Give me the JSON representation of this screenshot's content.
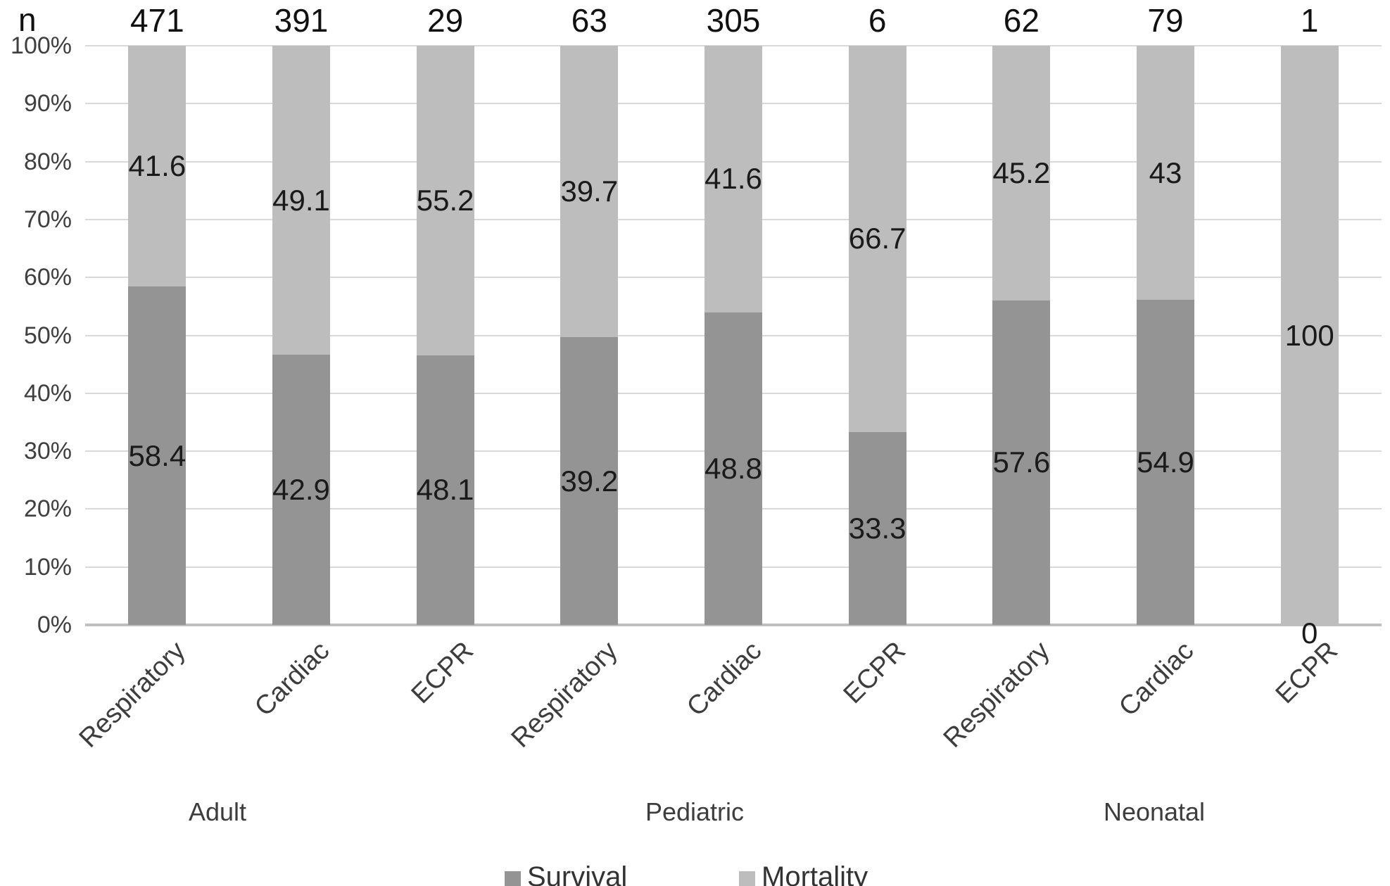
{
  "chart_data": {
    "type": "bar",
    "variant": "stacked-100-percent",
    "title": "",
    "n_header": "n",
    "xlabel": "",
    "ylabel": "",
    "ylim": [
      0,
      100
    ],
    "ytick_labels": [
      "100%",
      "90%",
      "80%",
      "70%",
      "60%",
      "50%",
      "40%",
      "30%",
      "20%",
      "10%",
      "0%"
    ],
    "grid": "horizontal",
    "legend_position": "bottom",
    "series_names": [
      "Survival",
      "Mortality"
    ],
    "legend": [
      {
        "label": "Survival",
        "color": "#949494"
      },
      {
        "label": "Mortality",
        "color": "#bdbdbd"
      }
    ],
    "groups": [
      {
        "label": "Adult",
        "bars": [
          {
            "category": "Respiratory",
            "n": "471",
            "survival": 58.4,
            "mortality": 41.6
          },
          {
            "category": "Cardiac",
            "n": "391",
            "survival": 42.9,
            "mortality": 49.1
          },
          {
            "category": "ECPR",
            "n": "29",
            "survival": 48.1,
            "mortality": 55.2
          }
        ]
      },
      {
        "label": "Pediatric",
        "bars": [
          {
            "category": "Respiratory",
            "n": "63",
            "survival": 39.2,
            "mortality": 39.7
          },
          {
            "category": "Cardiac",
            "n": "305",
            "survival": 48.8,
            "mortality": 41.6
          },
          {
            "category": "ECPR",
            "n": "6",
            "survival": 33.3,
            "mortality": 66.7
          }
        ]
      },
      {
        "label": "Neonatal",
        "bars": [
          {
            "category": "Respiratory",
            "n": "62",
            "survival": 57.6,
            "mortality": 45.2
          },
          {
            "category": "Cardiac",
            "n": "79",
            "survival": 54.9,
            "mortality": 43
          },
          {
            "category": "ECPR",
            "n": "1",
            "survival": 0,
            "mortality": 100
          }
        ]
      }
    ],
    "colors": {
      "survival": "#949494",
      "mortality": "#bdbdbd",
      "gridline": "#d9d9d9",
      "baseline": "#bfbfbf",
      "value_text": "#1a1a1a",
      "axis_text": "#3f3f3f"
    }
  }
}
